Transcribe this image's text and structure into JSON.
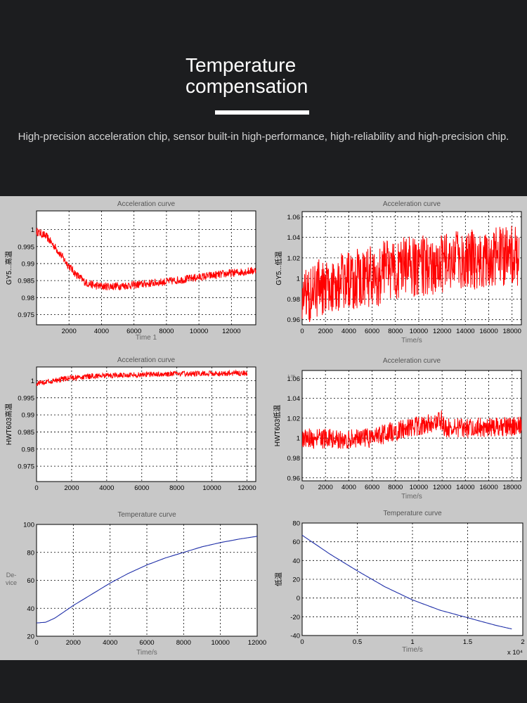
{
  "header": {
    "title_line1": "Temperature",
    "title_line2": "compensation",
    "subtitle": "High-precision acceleration chip, sensor built-in high-performance, high-reliability and high-precision chip."
  },
  "colors": {
    "background": "#1c1d1f",
    "panel": "#c8c8c8",
    "accel_line": "#ff0000",
    "temp_line": "#1f2fa8"
  },
  "chart_data": [
    {
      "type": "line",
      "title": "Acceleration curve",
      "xlabel": "Time 1",
      "ylabel": "GY5...高温",
      "xlim": [
        0,
        13500
      ],
      "ylim": [
        0.972,
        1.0055
      ],
      "xticks": [
        2000,
        4000,
        6000,
        8000,
        10000,
        12000
      ],
      "yticks": [
        0.975,
        0.98,
        0.985,
        0.99,
        0.995,
        1
      ],
      "ytick_labels": [
        "0.975",
        "0.98",
        "0.985",
        "0.99",
        "0.995",
        "1"
      ],
      "series": [
        {
          "name": "acceleration",
          "color": "#ff0000",
          "noise": 0.0012,
          "x": [
            0,
            600,
            1200,
            1800,
            2400,
            3000,
            3600,
            4200,
            5000,
            6000,
            7000,
            8000,
            9000,
            10000,
            11000,
            12000,
            13500
          ],
          "y": [
            0.9995,
            0.998,
            0.9945,
            0.9905,
            0.987,
            0.9845,
            0.9835,
            0.9833,
            0.9834,
            0.9837,
            0.9842,
            0.9847,
            0.9853,
            0.986,
            0.9866,
            0.9872,
            0.988
          ]
        }
      ]
    },
    {
      "type": "line",
      "title": "Acceleration curve",
      "xlabel": "Time/s",
      "ylabel": "GY5...低温",
      "xlim": [
        0,
        18800
      ],
      "ylim": [
        0.955,
        1.065
      ],
      "xticks": [
        0,
        2000,
        4000,
        6000,
        8000,
        10000,
        12000,
        14000,
        16000,
        18000
      ],
      "yticks": [
        0.96,
        0.98,
        1,
        1.02,
        1.04,
        1.06
      ],
      "ytick_labels": [
        "0.96",
        "0.98",
        "1",
        "1.02",
        "1.04",
        "1.06"
      ],
      "series": [
        {
          "name": "acceleration",
          "color": "#ff0000",
          "noise": 0.03,
          "x": [
            0,
            2000,
            4000,
            6800,
            7000,
            10000,
            14000,
            18600
          ],
          "y": [
            0.985,
            0.992,
            0.998,
            1.003,
            1.008,
            1.012,
            1.018,
            1.022
          ]
        }
      ]
    },
    {
      "type": "line",
      "title": "Acceleration curve",
      "xlabel": "",
      "ylabel": "HWT603高温",
      "xlim": [
        0,
        12500
      ],
      "ylim": [
        0.9705,
        1.004
      ],
      "xticks": [
        0,
        2000,
        4000,
        6000,
        8000,
        10000,
        12000
      ],
      "yticks": [
        0.975,
        0.98,
        0.985,
        0.99,
        0.995,
        1
      ],
      "ytick_labels": [
        "0.975",
        "0.98",
        "0.985",
        "0.99",
        "0.995",
        "1"
      ],
      "series": [
        {
          "name": "acceleration",
          "color": "#ff0000",
          "noise": 0.0008,
          "x": [
            0,
            1000,
            2000,
            3000,
            4000,
            6000,
            8000,
            10000,
            12000
          ],
          "y": [
            0.9992,
            1.0,
            1.0008,
            1.0012,
            1.0015,
            1.0018,
            1.002,
            1.0021,
            1.0022
          ]
        }
      ]
    },
    {
      "type": "line",
      "title": "Acceleration curve",
      "xlabel": "Time/s",
      "ylabel": "HWT603低温",
      "xlim": [
        0,
        18800
      ],
      "ylim": [
        0.957,
        1.068
      ],
      "xticks": [
        0,
        2000,
        4000,
        6000,
        8000,
        10000,
        12000,
        14000,
        16000,
        18000
      ],
      "yticks": [
        0.96,
        0.98,
        1,
        1.02,
        1.04,
        1.06
      ],
      "ytick_labels": [
        "0.96",
        "0.98",
        "1",
        "1.02",
        "1.04",
        "1.06"
      ],
      "annotations": [
        "1.06"
      ],
      "series": [
        {
          "name": "acceleration",
          "color": "#ff0000",
          "noise": 0.01,
          "x": [
            0,
            3000,
            6000,
            7000,
            9000,
            11000,
            12000,
            12200,
            14000,
            16000,
            18800
          ],
          "y": [
            1.0,
            0.999,
            1.0,
            1.004,
            1.01,
            1.015,
            1.018,
            1.01,
            1.01,
            1.011,
            1.012
          ]
        }
      ]
    },
    {
      "type": "line",
      "title": "Temperature curve",
      "xlabel": "Time/s",
      "ylabel": "De-vice",
      "xlim": [
        0,
        12000
      ],
      "ylim": [
        20,
        100
      ],
      "xticks": [
        0,
        2000,
        4000,
        6000,
        8000,
        10000,
        12000
      ],
      "yticks": [
        20,
        40,
        60,
        80,
        100
      ],
      "ytick_labels": [
        "20",
        "40",
        "60",
        "80",
        "100"
      ],
      "series": [
        {
          "name": "temperature",
          "color": "#1f2fa8",
          "noise": 0,
          "x": [
            0,
            500,
            1000,
            2000,
            3000,
            4000,
            5000,
            6000,
            7000,
            8000,
            9000,
            10000,
            11000,
            12000
          ],
          "y": [
            29.5,
            30,
            33,
            42,
            50,
            58,
            65,
            71,
            76,
            80,
            84,
            87,
            89.5,
            91.5
          ]
        }
      ]
    },
    {
      "type": "line",
      "title": "Temperature curve",
      "xlabel": "Time/s",
      "ylabel": "低温",
      "xlim": [
        0,
        2
      ],
      "ylim": [
        -40,
        80
      ],
      "axis_multiplier": "x 10⁴",
      "xticks": [
        0,
        0.5,
        1,
        1.5,
        2
      ],
      "yticks": [
        -40,
        -20,
        0,
        20,
        40,
        60,
        80
      ],
      "ytick_labels": [
        "-40",
        "-20",
        "0",
        "20",
        "40",
        "60",
        "80"
      ],
      "series": [
        {
          "name": "temperature",
          "color": "#1f2fa8",
          "noise": 0,
          "x": [
            0,
            0.25,
            0.5,
            0.75,
            1.0,
            1.25,
            1.5,
            1.75,
            1.9
          ],
          "y": [
            67,
            47,
            29,
            12,
            -2,
            -13,
            -21,
            -29,
            -33
          ]
        }
      ]
    }
  ]
}
